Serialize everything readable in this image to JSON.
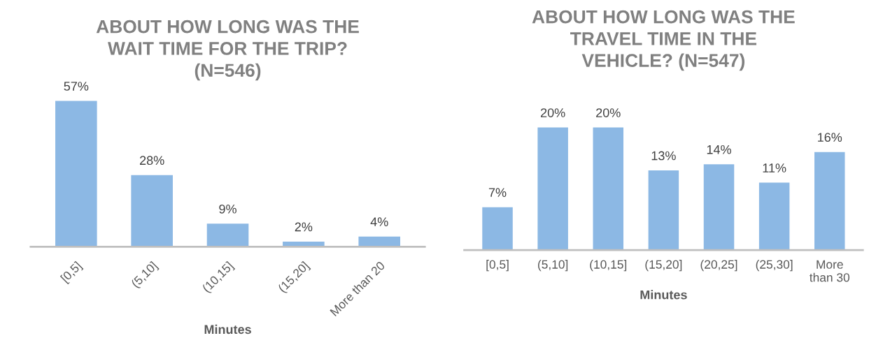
{
  "chart_data": [
    {
      "type": "bar",
      "title": "ABOUT HOW LONG WAS THE\nWAIT TIME FOR THE TRIP?\n(N=546)",
      "xlabel": "Minutes",
      "categories": [
        "[0,5]",
        "(5,10]",
        "(10,15]",
        "(15,20]",
        "More than 20"
      ],
      "values": [
        57,
        28,
        9,
        2,
        4
      ],
      "value_labels": [
        "57%",
        "28%",
        "9%",
        "2%",
        "4%"
      ],
      "color": "#8cb8e4",
      "grid": false,
      "legend": false
    },
    {
      "type": "bar",
      "title": "ABOUT HOW LONG WAS THE\nTRAVEL TIME IN THE\nVEHICLE? (N=547)",
      "xlabel": "Minutes",
      "categories": [
        "[0,5]",
        "(5,10]",
        "(10,15]",
        "(15,20]",
        "(20,25]",
        "(25,30]",
        "More than 30"
      ],
      "values": [
        7,
        20,
        20,
        13,
        14,
        11,
        16
      ],
      "value_labels": [
        "7%",
        "20%",
        "20%",
        "13%",
        "14%",
        "11%",
        "16%"
      ],
      "color": "#8cb8e4",
      "grid": false,
      "legend": false
    }
  ]
}
